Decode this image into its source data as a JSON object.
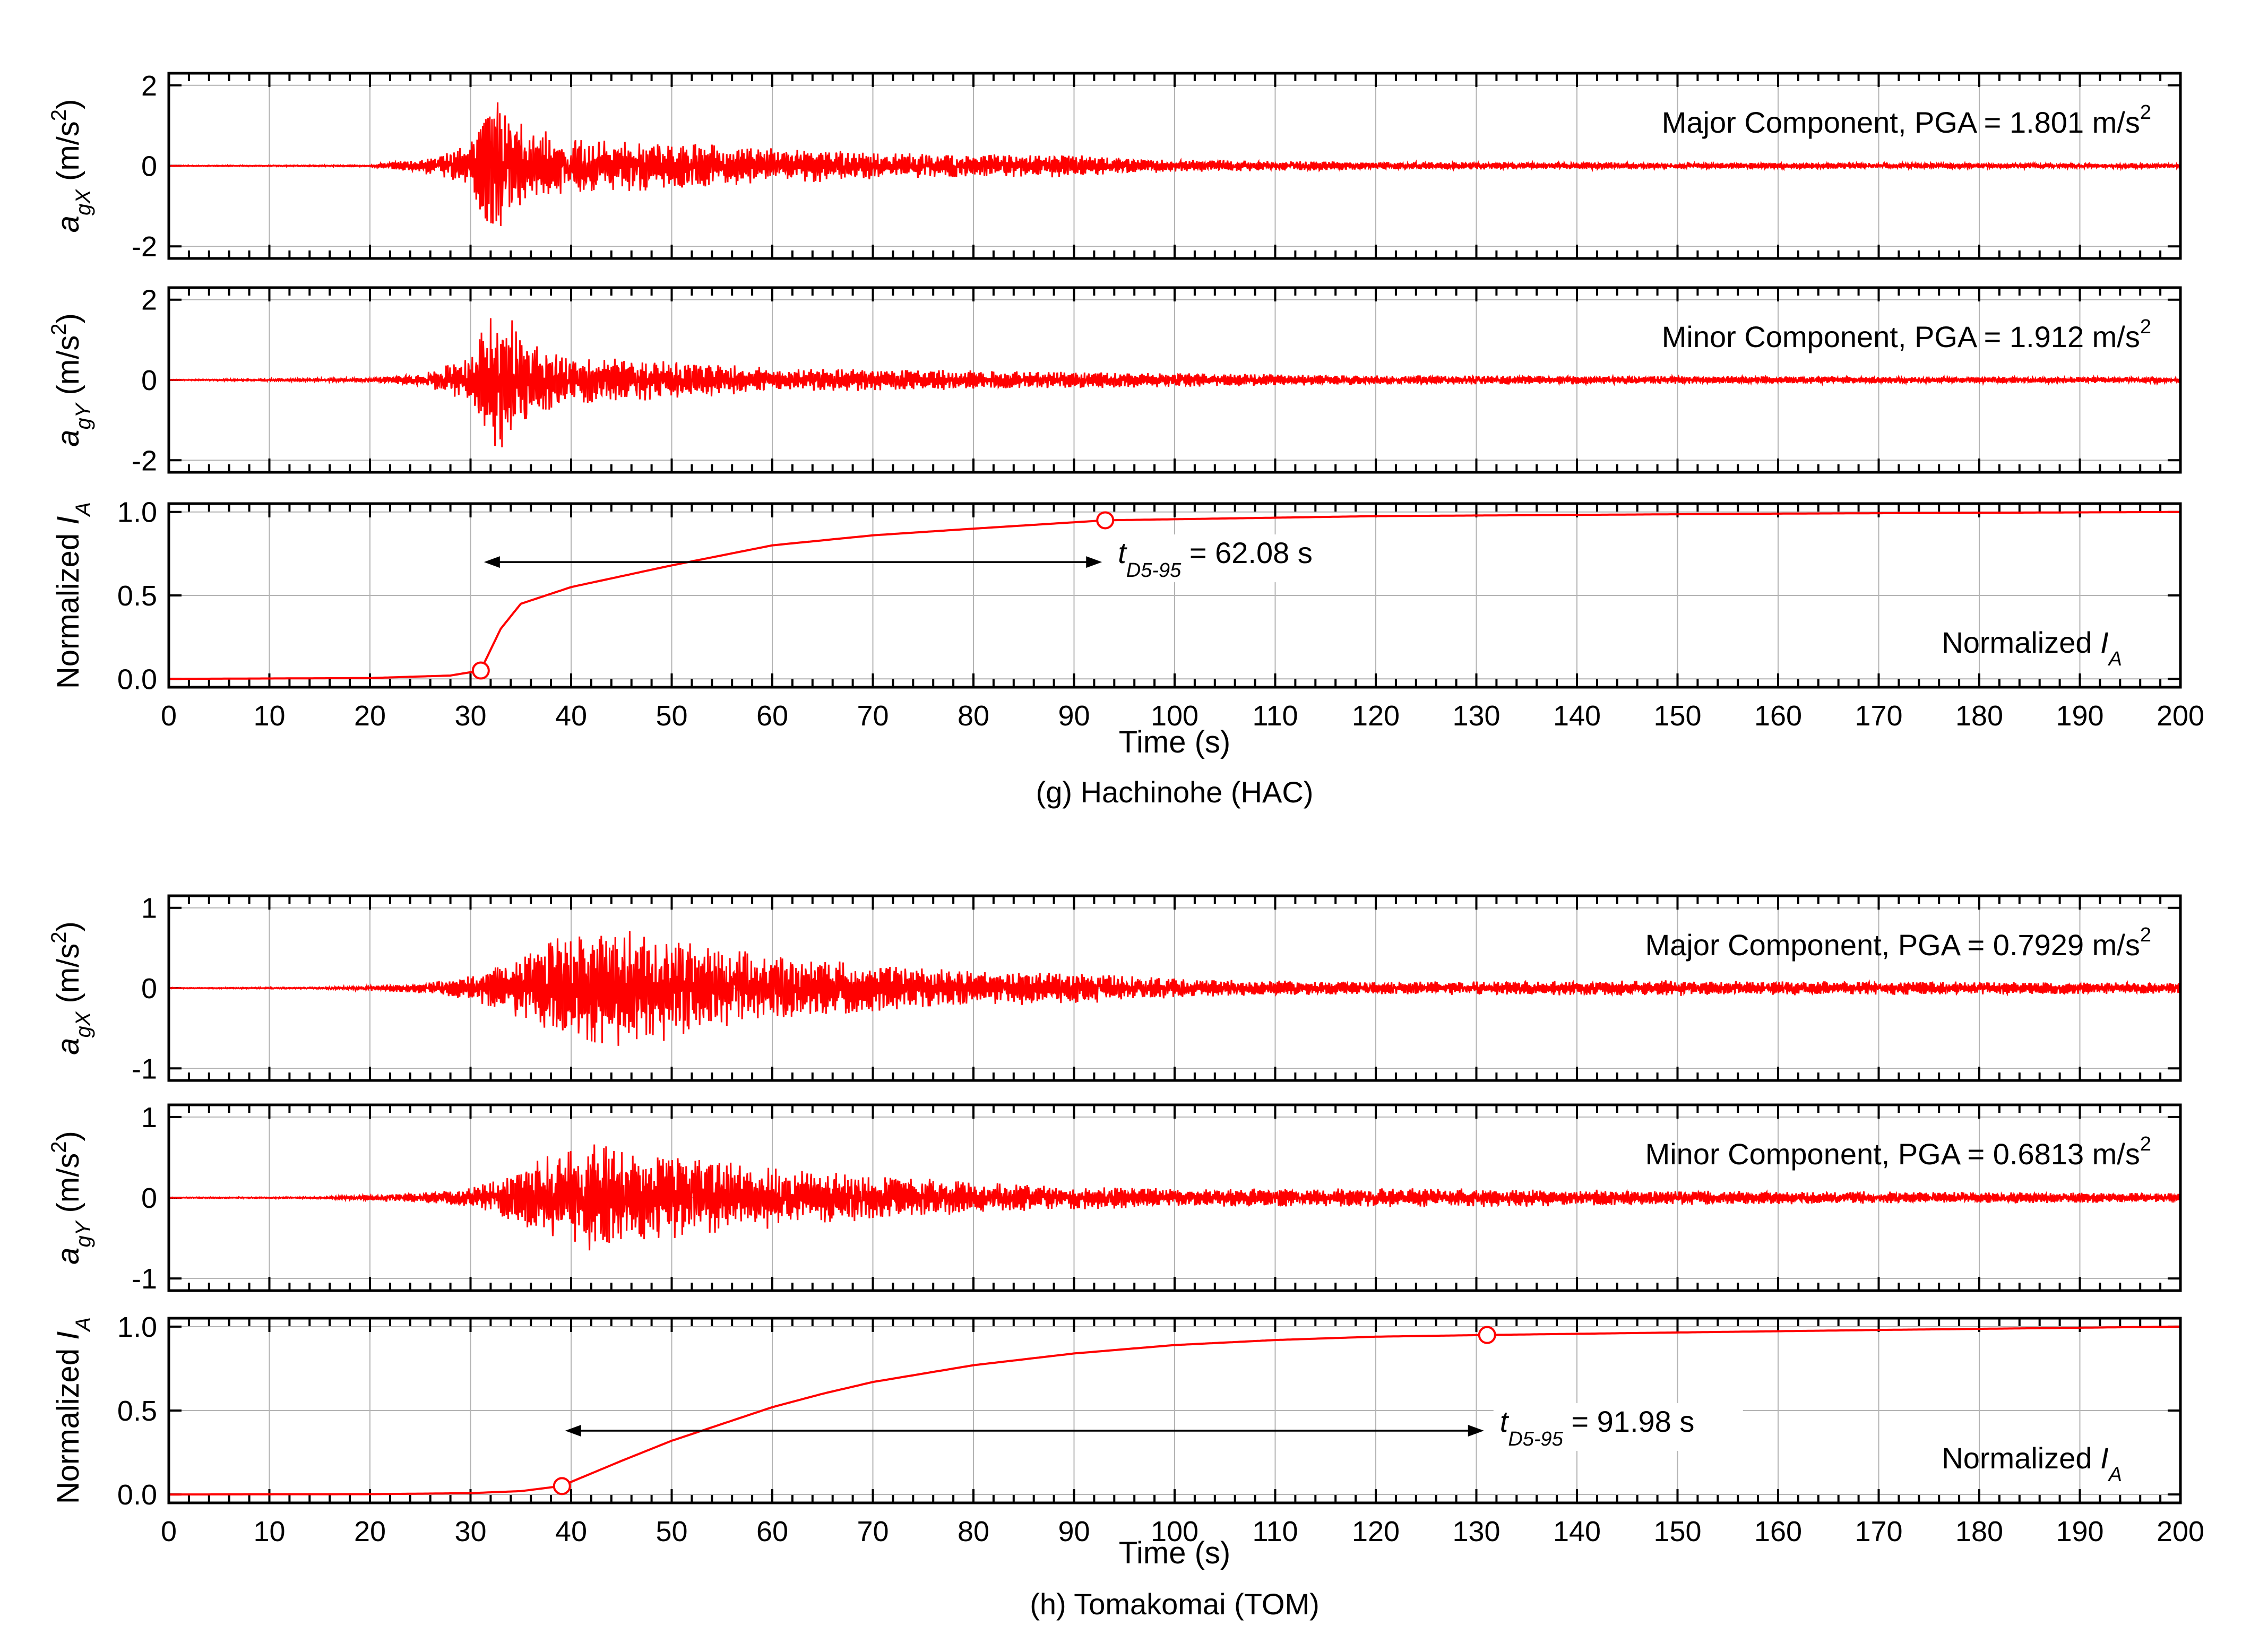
{
  "figure": {
    "line_color": "#ff0000",
    "grid_color": "#b4b4b4",
    "x_axis_label": "Time (s)",
    "x_ticks": [
      "0",
      "10",
      "20",
      "30",
      "40",
      "50",
      "60",
      "70",
      "80",
      "90",
      "100",
      "110",
      "120",
      "130",
      "140",
      "150",
      "160",
      "170",
      "180",
      "190",
      "200"
    ]
  },
  "chart_data": [
    {
      "id": "g",
      "caption": "(g) Hachinohe (HAC)",
      "type": "line",
      "xlim": [
        0,
        200
      ],
      "xlabel": "Time (s)",
      "grid": true,
      "panels": [
        {
          "kind": "acceleration",
          "ylabel_main": "a",
          "ylabel_sub": "gX",
          "ylabel_unit": " (m/s",
          "ylabel_sup": "2",
          "ylabel_close": ")",
          "ylim": [
            -2.3,
            2.3
          ],
          "yticks": [
            "2",
            "0",
            "-2"
          ],
          "ytick_values": [
            2,
            0,
            -2
          ],
          "annotation": "Major Component, PGA = 1.801 m/s",
          "annotation_sup": "2",
          "pga": 1.801,
          "envelope": [
            [
              0,
              0.01
            ],
            [
              20,
              0.02
            ],
            [
              25,
              0.18
            ],
            [
              30,
              0.55
            ],
            [
              31.5,
              1.8
            ],
            [
              33,
              1.6
            ],
            [
              36,
              0.95
            ],
            [
              40,
              0.7
            ],
            [
              50,
              0.6
            ],
            [
              60,
              0.45
            ],
            [
              70,
              0.35
            ],
            [
              80,
              0.3
            ],
            [
              90,
              0.28
            ],
            [
              95,
              0.2
            ],
            [
              100,
              0.16
            ],
            [
              120,
              0.1
            ],
            [
              150,
              0.08
            ],
            [
              200,
              0.06
            ]
          ]
        },
        {
          "kind": "acceleration",
          "ylabel_main": "a",
          "ylabel_sub": "gY",
          "ylabel_unit": " (m/s",
          "ylabel_sup": "2",
          "ylabel_close": ")",
          "ylim": [
            -2.3,
            2.3
          ],
          "yticks": [
            "2",
            "0",
            "-2"
          ],
          "ytick_values": [
            2,
            0,
            -2
          ],
          "annotation": "Minor Component, PGA = 1.912 m/s",
          "annotation_sup": "2",
          "pga": 1.912,
          "envelope": [
            [
              0,
              0.01
            ],
            [
              20,
              0.05
            ],
            [
              25,
              0.15
            ],
            [
              30,
              0.6
            ],
            [
              31.5,
              1.6
            ],
            [
              33,
              1.9
            ],
            [
              36,
              1.0
            ],
            [
              40,
              0.6
            ],
            [
              50,
              0.5
            ],
            [
              60,
              0.3
            ],
            [
              70,
              0.28
            ],
            [
              80,
              0.25
            ],
            [
              100,
              0.18
            ],
            [
              120,
              0.12
            ],
            [
              150,
              0.1
            ],
            [
              200,
              0.07
            ]
          ]
        },
        {
          "kind": "arias",
          "ylabel_main": "Normalized ",
          "ylabel_italic": "I",
          "ylabel_sub": "A",
          "ylim": [
            -0.05,
            1.05
          ],
          "yticks": [
            "1.0",
            "0.5",
            "0.0"
          ],
          "ytick_values": [
            1.0,
            0.5,
            0.0
          ],
          "legend_label": "Normalized ",
          "legend_italic": "I",
          "legend_sub": "A",
          "arias_curve": [
            [
              0,
              0
            ],
            [
              20,
              0.005
            ],
            [
              28,
              0.02
            ],
            [
              31,
              0.05
            ],
            [
              33,
              0.3
            ],
            [
              35,
              0.45
            ],
            [
              40,
              0.55
            ],
            [
              50,
              0.68
            ],
            [
              60,
              0.8
            ],
            [
              70,
              0.86
            ],
            [
              80,
              0.9
            ],
            [
              93.1,
              0.95
            ],
            [
              120,
              0.975
            ],
            [
              160,
              0.99
            ],
            [
              200,
              1.0
            ]
          ],
          "markers": [
            [
              31.02,
              0.05
            ],
            [
              93.1,
              0.95
            ]
          ],
          "duration_t": "t",
          "duration_sub": "D5-95",
          "duration_value": " = 62.08 s",
          "t5": 31.02,
          "t95": 93.1,
          "arrow_y": 0.7
        }
      ]
    },
    {
      "id": "h",
      "caption": "(h) Tomakomai (TOM)",
      "type": "line",
      "xlim": [
        0,
        200
      ],
      "xlabel": "Time (s)",
      "grid": true,
      "panels": [
        {
          "kind": "acceleration",
          "ylabel_main": "a",
          "ylabel_sub": "gX",
          "ylabel_unit": " (m/s",
          "ylabel_sup": "2",
          "ylabel_close": ")",
          "ylim": [
            -1.15,
            1.15
          ],
          "yticks": [
            "1",
            "0",
            "-1"
          ],
          "ytick_values": [
            1,
            0,
            -1
          ],
          "annotation": "Major Component, PGA = 0.7929 m/s",
          "annotation_sup": "2",
          "pga": 0.7929,
          "envelope": [
            [
              0,
              0.005
            ],
            [
              15,
              0.01
            ],
            [
              25,
              0.06
            ],
            [
              30,
              0.15
            ],
            [
              35,
              0.4
            ],
            [
              38,
              0.6
            ],
            [
              42,
              0.79
            ],
            [
              48,
              0.7
            ],
            [
              55,
              0.5
            ],
            [
              62,
              0.4
            ],
            [
              70,
              0.3
            ],
            [
              80,
              0.22
            ],
            [
              90,
              0.2
            ],
            [
              100,
              0.12
            ],
            [
              120,
              0.08
            ],
            [
              150,
              0.1
            ],
            [
              200,
              0.07
            ]
          ]
        },
        {
          "kind": "acceleration",
          "ylabel_main": "a",
          "ylabel_sub": "gY",
          "ylabel_unit": " (m/s",
          "ylabel_sup": "2",
          "ylabel_close": ")",
          "ylim": [
            -1.15,
            1.15
          ],
          "yticks": [
            "1",
            "0",
            "-1"
          ],
          "ytick_values": [
            1,
            0,
            -1
          ],
          "annotation": "Minor Component, PGA = 0.6813 m/s",
          "annotation_sup": "2",
          "pga": 0.6813,
          "envelope": [
            [
              0,
              0.005
            ],
            [
              15,
              0.01
            ],
            [
              25,
              0.06
            ],
            [
              30,
              0.12
            ],
            [
              35,
              0.35
            ],
            [
              38,
              0.55
            ],
            [
              42,
              0.68
            ],
            [
              48,
              0.6
            ],
            [
              55,
              0.45
            ],
            [
              62,
              0.35
            ],
            [
              70,
              0.28
            ],
            [
              80,
              0.2
            ],
            [
              90,
              0.15
            ],
            [
              100,
              0.12
            ],
            [
              130,
              0.12
            ],
            [
              150,
              0.09
            ],
            [
              200,
              0.06
            ]
          ]
        },
        {
          "kind": "arias",
          "ylabel_main": "Normalized ",
          "ylabel_italic": "I",
          "ylabel_sub": "A",
          "ylim": [
            -0.05,
            1.05
          ],
          "yticks": [
            "1.0",
            "0.5",
            "0.0"
          ],
          "ytick_values": [
            1.0,
            0.5,
            0.0
          ],
          "legend_label": "Normalized ",
          "legend_italic": "I",
          "legend_sub": "A",
          "arias_curve": [
            [
              0,
              0
            ],
            [
              20,
              0.002
            ],
            [
              30,
              0.008
            ],
            [
              35,
              0.02
            ],
            [
              39,
              0.05
            ],
            [
              45,
              0.2
            ],
            [
              50,
              0.32
            ],
            [
              55,
              0.42
            ],
            [
              60,
              0.52
            ],
            [
              65,
              0.6
            ],
            [
              70,
              0.67
            ],
            [
              75,
              0.72
            ],
            [
              80,
              0.77
            ],
            [
              90,
              0.84
            ],
            [
              100,
              0.89
            ],
            [
              110,
              0.92
            ],
            [
              120,
              0.94
            ],
            [
              131,
              0.95
            ],
            [
              150,
              0.965
            ],
            [
              170,
              0.98
            ],
            [
              200,
              1.0
            ]
          ],
          "markers": [
            [
              39.09,
              0.05
            ],
            [
              131.07,
              0.95
            ]
          ],
          "duration_t": "t",
          "duration_sub": "D5-95",
          "duration_value": " = 91.98 s",
          "t5": 39.09,
          "t95": 131.07,
          "arrow_y": 0.38
        }
      ]
    }
  ]
}
